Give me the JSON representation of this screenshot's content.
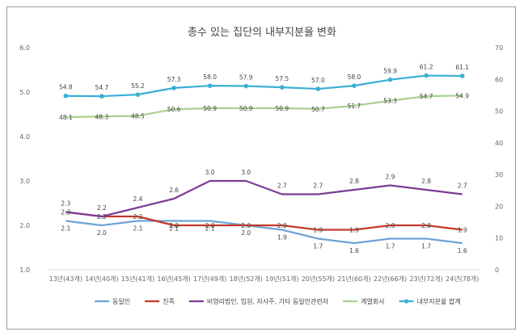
{
  "chart_data": {
    "type": "line",
    "title": "총수 있는 집단의 내부지분율 변화",
    "categories": [
      "13년(43개)",
      "14년(40개)",
      "15년(41개)",
      "16년(45개)",
      "17년(49개)",
      "18년(52개)",
      "19년(51개)",
      "20년(55개)",
      "21년(60개)",
      "22년(66개)",
      "23년(72개)",
      "24년(78개)"
    ],
    "left_axis": {
      "min": 1.0,
      "max": 6.0,
      "ticks": [
        "1.0",
        "2.0",
        "3.0",
        "4.0",
        "5.0",
        "6.0"
      ]
    },
    "right_axis": {
      "min": 0,
      "max": 70,
      "ticks": [
        "0",
        "10",
        "20",
        "30",
        "40",
        "50",
        "60",
        "70"
      ]
    },
    "series": [
      {
        "name": "동일인",
        "axis": "left",
        "color": "#6fa3d6",
        "marker": false,
        "label_pos": "below",
        "values": [
          2.1,
          2.0,
          2.1,
          2.1,
          2.1,
          2.0,
          1.9,
          1.7,
          1.6,
          1.7,
          1.7,
          1.6
        ],
        "labels": [
          "2.1",
          "2.0",
          "2.1",
          "2.1",
          "2.1",
          "2.0",
          "1.9",
          "1.7",
          "1.6",
          "1.7",
          "1.7",
          "1.6"
        ]
      },
      {
        "name": "친족",
        "axis": "left",
        "color": "#c0392b",
        "marker": false,
        "label_pos": "on",
        "values": [
          2.3,
          2.2,
          2.2,
          2.0,
          2.0,
          2.0,
          2.0,
          1.9,
          1.9,
          2.0,
          2.0,
          1.9
        ],
        "labels": [
          "2.3",
          "2.2",
          "2.2",
          "2.0",
          "2.0",
          "2.0",
          "2.0",
          "1.9",
          "1.9",
          "2.0",
          "2.0",
          "1.9"
        ]
      },
      {
        "name": "비영리법인, 임원, 자사주, 기타 동일인관련자",
        "axis": "left",
        "color": "#7d3c98",
        "marker": false,
        "label_pos": "above",
        "values": [
          2.3,
          2.2,
          2.4,
          2.6,
          3.0,
          3.0,
          2.7,
          2.7,
          2.8,
          2.9,
          2.8,
          2.7
        ],
        "labels": [
          "2.3",
          "2.2",
          "2.4",
          "2.6",
          "3.0",
          "3.0",
          "2.7",
          "2.7",
          "2.8",
          "2.9",
          "2.8",
          "2.7"
        ]
      },
      {
        "name": "계열회사",
        "axis": "right",
        "color": "#a9d18e",
        "marker": false,
        "label_pos": "on",
        "values": [
          48.1,
          48.3,
          48.5,
          50.6,
          50.9,
          50.9,
          50.9,
          50.7,
          51.7,
          53.3,
          54.7,
          54.9
        ],
        "labels": [
          "48.1",
          "48.3",
          "48.5",
          "50.6",
          "50.9",
          "50.9",
          "50.9",
          "50.7",
          "51.7",
          "53.3",
          "54.7",
          "54.9"
        ]
      },
      {
        "name": "내부지분율 합계",
        "axis": "right",
        "color": "#3aafd4",
        "marker": true,
        "label_pos": "above",
        "values": [
          54.8,
          54.7,
          55.2,
          57.3,
          58.0,
          57.9,
          57.5,
          57.0,
          58.0,
          59.9,
          61.2,
          61.1
        ],
        "labels": [
          "54.8",
          "54.7",
          "55.2",
          "57.3",
          "58.0",
          "57.9",
          "57.5",
          "57.0",
          "58.0",
          "59.9",
          "61.2",
          "61.1"
        ]
      }
    ],
    "legend_position": "bottom",
    "grid": false
  }
}
